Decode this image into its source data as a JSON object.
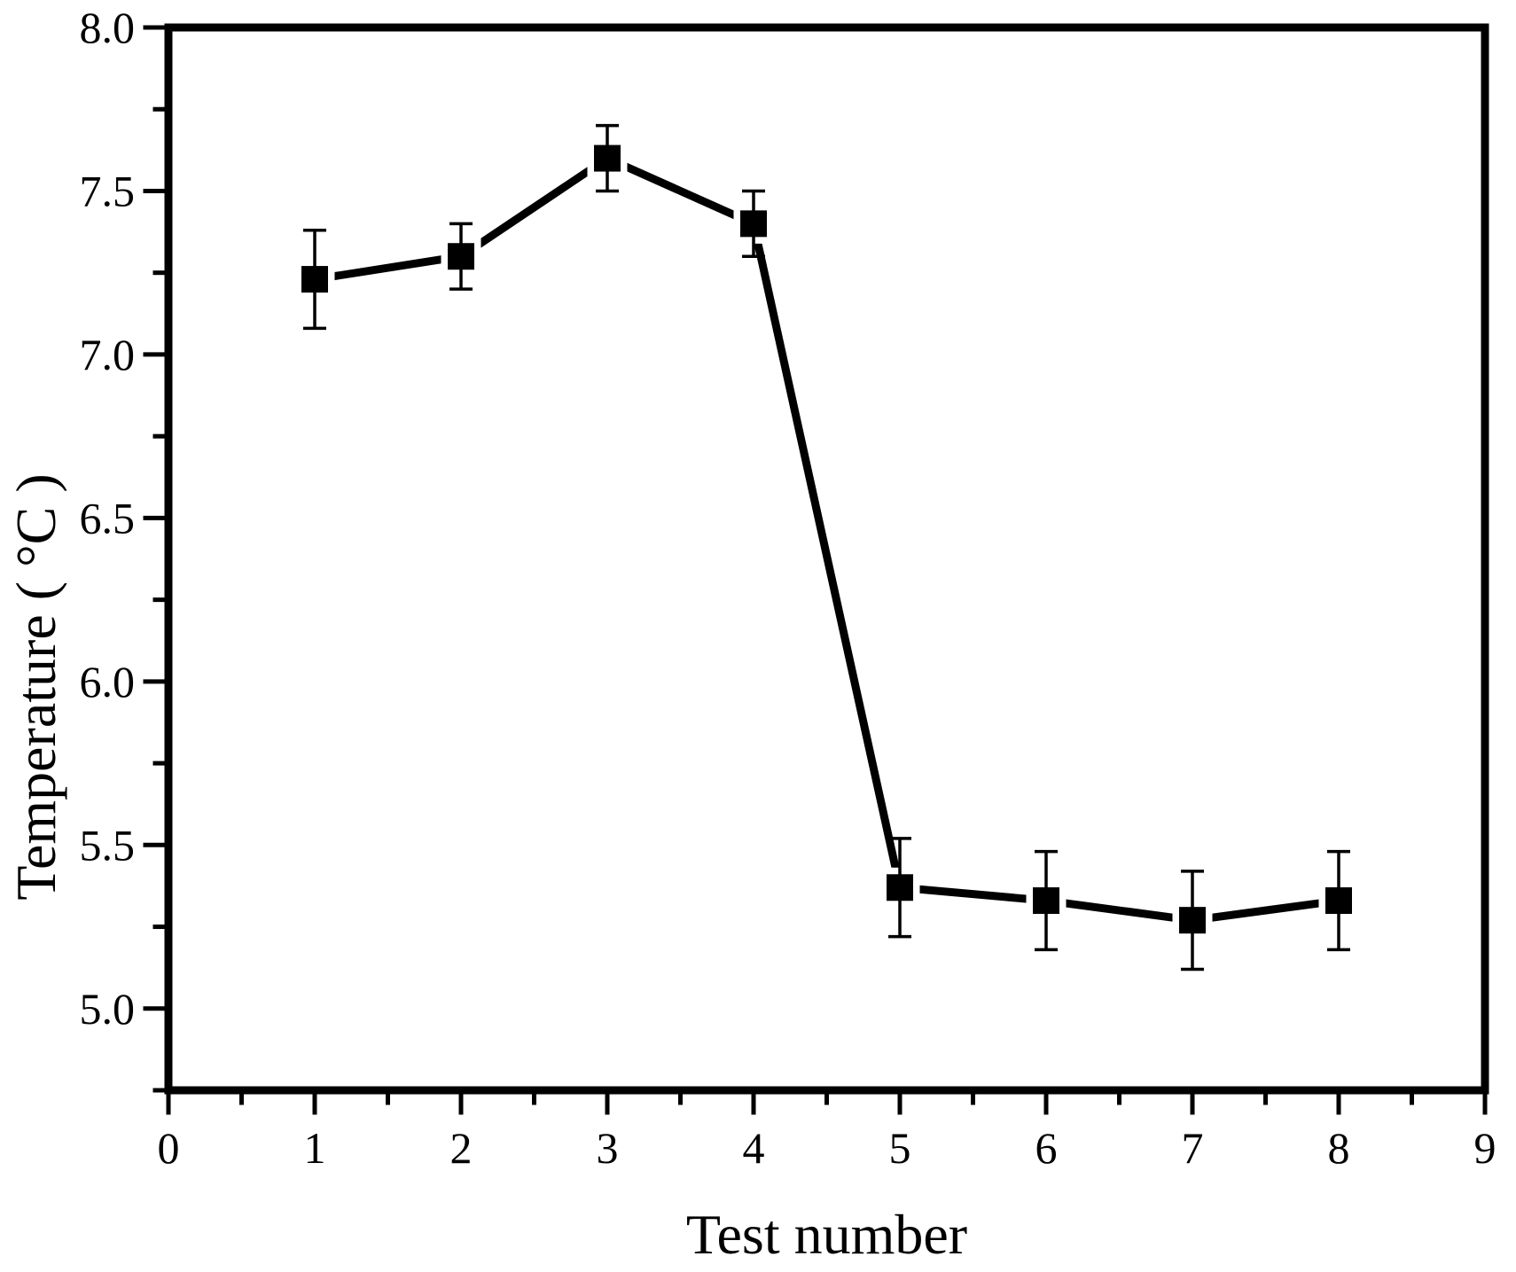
{
  "chart_data": {
    "type": "line",
    "title": "",
    "xlabel": "Test number",
    "ylabel": "Temperature ( °C )",
    "x": [
      1,
      2,
      3,
      4,
      5,
      6,
      7,
      8
    ],
    "series": [
      {
        "name": "Temperature",
        "values": [
          7.23,
          7.3,
          7.6,
          7.4,
          5.37,
          5.33,
          5.27,
          5.33
        ],
        "yerr": [
          0.15,
          0.1,
          0.1,
          0.1,
          0.15,
          0.15,
          0.15,
          0.15
        ]
      }
    ],
    "xlim": [
      0,
      9
    ],
    "ylim": [
      4.75,
      8.0
    ],
    "x_major_ticks": [
      0,
      1,
      2,
      3,
      4,
      5,
      6,
      7,
      8,
      9
    ],
    "x_tick_labels": [
      "0",
      "1",
      "2",
      "3",
      "4",
      "5",
      "6",
      "7",
      "8",
      "9"
    ],
    "x_minor_ticks": [
      0.5,
      1.5,
      2.5,
      3.5,
      4.5,
      5.5,
      6.5,
      7.5,
      8.5
    ],
    "y_major_ticks": [
      5.0,
      5.5,
      6.0,
      6.5,
      7.0,
      7.5,
      8.0
    ],
    "y_tick_labels": [
      "5.0",
      "5.5",
      "6.0",
      "6.5",
      "7.0",
      "7.5",
      "8.0"
    ],
    "y_minor_ticks": [
      4.75,
      5.25,
      5.75,
      6.25,
      6.75,
      7.25,
      7.75
    ],
    "grid": false,
    "legend": "none",
    "tick_direction": "out",
    "marker": "filled-square",
    "colors": {
      "line": "#000000",
      "marker": "#000000",
      "axis": "#000000",
      "text": "#000000",
      "background": "#ffffff"
    }
  }
}
